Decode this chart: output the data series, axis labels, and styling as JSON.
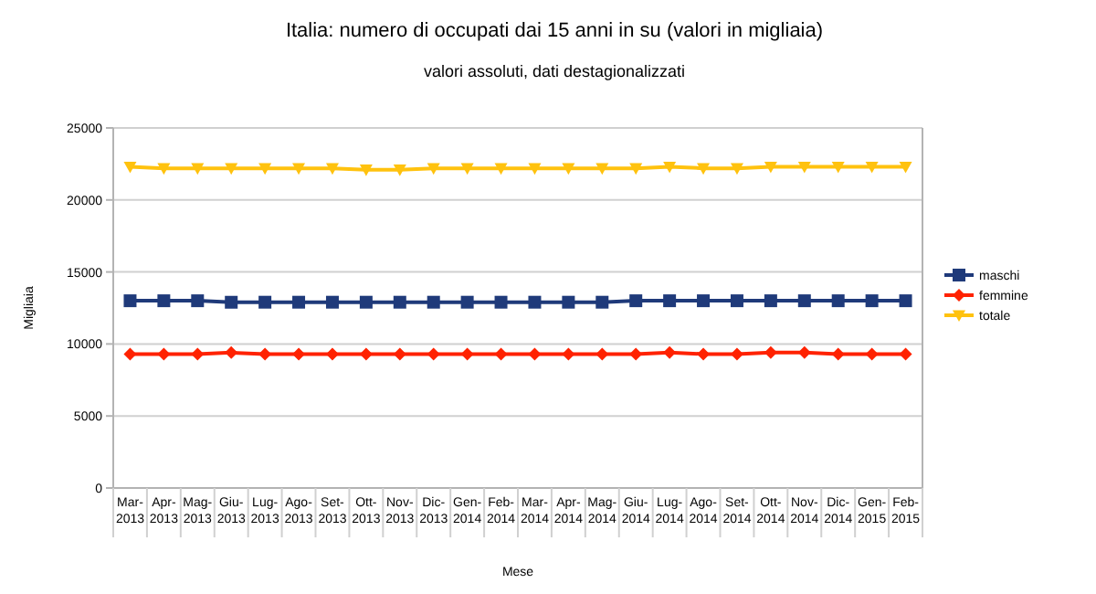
{
  "chart_data": {
    "type": "line",
    "title": "Italia: numero di occupati dai 15 anni in su (valori in migliaia)",
    "subtitle": "valori assoluti, dati destagionalizzati",
    "xlabel": "Mese",
    "ylabel": "Migliaia",
    "categories": [
      "Mar-2013",
      "Apr-2013",
      "Mag-2013",
      "Giu-2013",
      "Lug-2013",
      "Ago-2013",
      "Set-2013",
      "Ott-2013",
      "Nov-2013",
      "Dic-2013",
      "Gen-2014",
      "Feb-2014",
      "Mar-2014",
      "Apr-2014",
      "Mag-2014",
      "Giu-2014",
      "Lug-2014",
      "Ago-2014",
      "Set-2014",
      "Ott-2014",
      "Nov-2014",
      "Dic-2014",
      "Gen-2015",
      "Feb-2015"
    ],
    "series": [
      {
        "name": "maschi",
        "color": "#1f3a7a",
        "marker": "square",
        "values": [
          13000,
          13000,
          13000,
          12900,
          12900,
          12900,
          12900,
          12900,
          12900,
          12900,
          12900,
          12900,
          12900,
          12900,
          12900,
          13000,
          13000,
          13000,
          13000,
          13000,
          13000,
          13000,
          13000,
          13000
        ]
      },
      {
        "name": "femmine",
        "color": "#ff2200",
        "marker": "diamond",
        "values": [
          9300,
          9300,
          9300,
          9400,
          9300,
          9300,
          9300,
          9300,
          9300,
          9300,
          9300,
          9300,
          9300,
          9300,
          9300,
          9300,
          9400,
          9300,
          9300,
          9400,
          9400,
          9300,
          9300,
          9300
        ]
      },
      {
        "name": "totale",
        "color": "#ffc20e",
        "marker": "triangle",
        "values": [
          22300,
          22200,
          22200,
          22200,
          22200,
          22200,
          22200,
          22100,
          22100,
          22200,
          22200,
          22200,
          22200,
          22200,
          22200,
          22200,
          22300,
          22200,
          22200,
          22300,
          22300,
          22300,
          22300,
          22300
        ]
      }
    ],
    "ylim": [
      0,
      25000
    ],
    "yticks": [
      0,
      5000,
      10000,
      15000,
      20000,
      25000
    ],
    "grid": "y",
    "legend": "right",
    "line_style": "solid"
  }
}
